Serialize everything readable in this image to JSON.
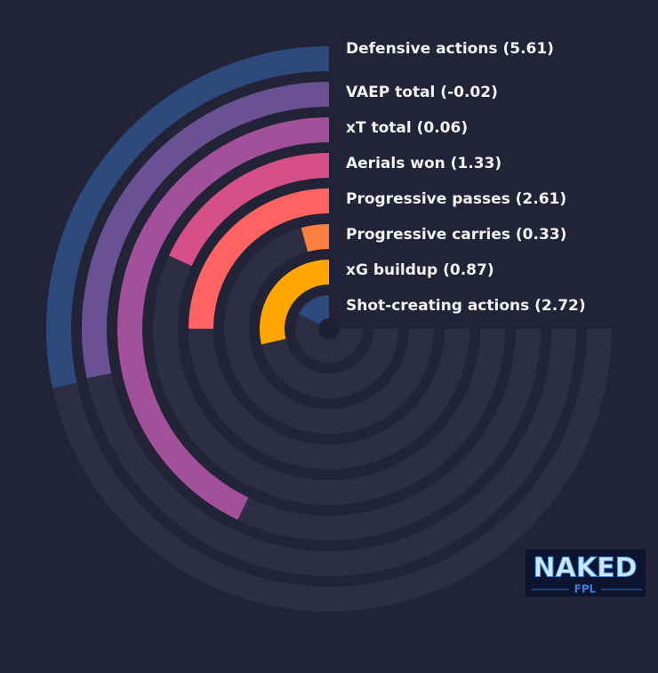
{
  "chart_data": {
    "type": "radial-bar",
    "categories": [
      "Defensive actions (5.61)",
      "VAEP total (-0.02)",
      "xT total (0.06)",
      "Aerials won (1.33)",
      "Progressive passes (2.61)",
      "Progressive carries (0.33)",
      "xG buildup (0.87)",
      "Shot-creating actions (2.72)"
    ],
    "values": [
      37.8,
      37.6,
      57.2,
      24.2,
      33.3,
      5.7,
      38.1,
      23.7
    ],
    "colors": [
      "#2e4a7c",
      "#695193",
      "#a2509a",
      "#d54f89",
      "#fe6262",
      "#fb7f3e",
      "#ffa600",
      "#2e4a7c"
    ],
    "xlim": [
      0,
      100
    ]
  },
  "logo": {
    "text": "NAKED",
    "subtext": "FPL"
  }
}
